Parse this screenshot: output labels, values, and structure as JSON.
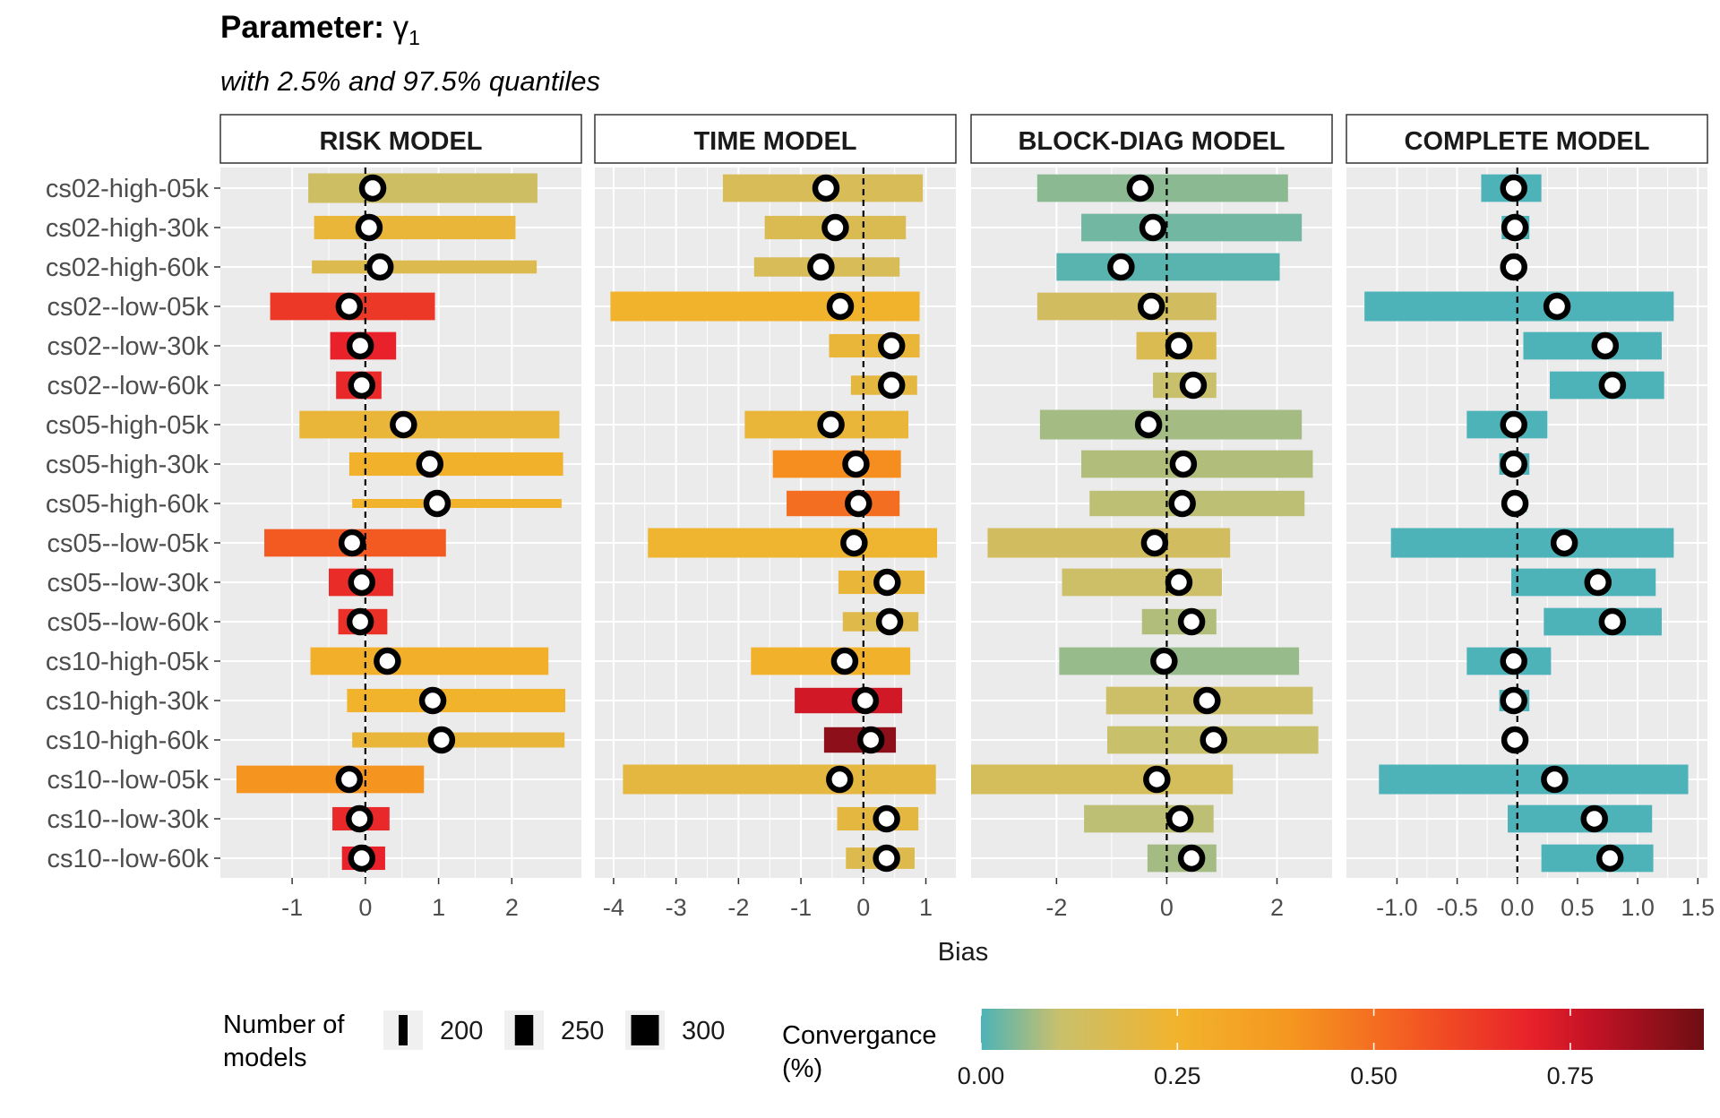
{
  "title_prefix": "Parameter: ",
  "title_symbol": "γ",
  "title_subscript": "1",
  "subtitle": "with 2.5% and 97.5% quantiles",
  "xlabel": "Bias",
  "legend": {
    "size_title_line1": "Number of",
    "size_title_line2": "models",
    "size_values": [
      200,
      250,
      300
    ],
    "size_labels": [
      "200",
      "250",
      "300"
    ],
    "color_title_line1": "Convergance",
    "color_title_line2": "(%)",
    "color_ticks": [
      0,
      0.25,
      0.5,
      0.75
    ],
    "color_tick_labels": [
      "0.00",
      "0.25",
      "0.50",
      "0.75"
    ],
    "color_range": [
      0,
      0.92
    ],
    "color_stops": [
      {
        "v": 0.0,
        "c": "#4db3b8"
      },
      {
        "v": 0.1,
        "c": "#c9c06c"
      },
      {
        "v": 0.25,
        "c": "#f2b32c"
      },
      {
        "v": 0.4,
        "c": "#f5951f"
      },
      {
        "v": 0.55,
        "c": "#f35a22"
      },
      {
        "v": 0.7,
        "c": "#e8212a"
      },
      {
        "v": 0.78,
        "c": "#c21225"
      },
      {
        "v": 0.92,
        "c": "#6e0e13"
      }
    ]
  },
  "chart_data": {
    "type": "interval-dot",
    "categories": [
      "cs02-high-05k",
      "cs02-high-30k",
      "cs02-high-60k",
      "cs02--low-05k",
      "cs02--low-30k",
      "cs02--low-60k",
      "cs05-high-05k",
      "cs05-high-30k",
      "cs05-high-60k",
      "cs05--low-05k",
      "cs05--low-30k",
      "cs05--low-60k",
      "cs10-high-05k",
      "cs10-high-30k",
      "cs10-high-60k",
      "cs10--low-05k",
      "cs10--low-30k",
      "cs10--low-60k"
    ],
    "panels": [
      {
        "name": "RISK MODEL",
        "xlim": [
          -1.98,
          2.95
        ],
        "xticks": [
          -1,
          0,
          1,
          2
        ],
        "xtick_labels": [
          "-1",
          "0",
          "1",
          "2"
        ],
        "lo": [
          -0.78,
          -0.7,
          -0.73,
          -1.3,
          -0.48,
          -0.4,
          -0.9,
          -0.22,
          -0.18,
          -1.38,
          -0.5,
          -0.37,
          -0.75,
          -0.25,
          -0.18,
          -1.76,
          -0.45,
          -0.32
        ],
        "hi": [
          2.35,
          2.05,
          2.34,
          0.95,
          0.42,
          0.22,
          2.65,
          2.7,
          2.68,
          1.1,
          0.38,
          0.3,
          2.5,
          2.73,
          2.72,
          0.8,
          0.33,
          0.27
        ],
        "mean": [
          0.1,
          0.05,
          0.2,
          -0.22,
          -0.07,
          -0.05,
          0.52,
          0.88,
          0.98,
          -0.18,
          -0.05,
          -0.07,
          0.3,
          0.92,
          1.04,
          -0.22,
          -0.08,
          -0.05
        ],
        "conv": [
          0.12,
          0.22,
          0.17,
          0.64,
          0.7,
          0.68,
          0.22,
          0.26,
          0.25,
          0.55,
          0.67,
          0.66,
          0.27,
          0.25,
          0.22,
          0.4,
          0.68,
          0.7
        ],
        "n": [
          300,
          270,
          220,
          290,
          290,
          290,
          290,
          270,
          200,
          290,
          290,
          280,
          290,
          270,
          230,
          290,
          270,
          270
        ]
      },
      {
        "name": "TIME MODEL",
        "xlim": [
          -4.3,
          1.48
        ],
        "xticks": [
          -4,
          -3,
          -2,
          -1,
          0,
          1
        ],
        "xtick_labels": [
          "-4",
          "-3",
          "-2",
          "-1",
          "0",
          "1"
        ],
        "lo": [
          -2.25,
          -1.58,
          -1.75,
          -4.05,
          -0.55,
          -0.2,
          -1.9,
          -1.45,
          -1.23,
          -3.45,
          -0.4,
          -0.33,
          -1.8,
          -1.1,
          -0.63,
          -3.85,
          -0.42,
          -0.28
        ],
        "hi": [
          0.95,
          0.68,
          0.58,
          0.9,
          0.9,
          0.86,
          0.72,
          0.6,
          0.58,
          1.18,
          0.98,
          0.88,
          0.75,
          0.62,
          0.52,
          1.16,
          0.88,
          0.82
        ],
        "mean": [
          -0.6,
          -0.45,
          -0.68,
          -0.37,
          0.45,
          0.45,
          -0.52,
          -0.12,
          -0.08,
          -0.15,
          0.38,
          0.42,
          -0.3,
          0.03,
          0.12,
          -0.38,
          0.37,
          0.37
        ],
        "conv": [
          0.15,
          0.16,
          0.15,
          0.25,
          0.22,
          0.2,
          0.22,
          0.42,
          0.5,
          0.24,
          0.22,
          0.18,
          0.26,
          0.75,
          0.87,
          0.2,
          0.2,
          0.17
        ],
        "n": [
          290,
          270,
          250,
          300,
          270,
          250,
          290,
          290,
          280,
          300,
          270,
          250,
          290,
          280,
          280,
          300,
          270,
          260
        ]
      },
      {
        "name": "BLOCK-DIAG MODEL",
        "xlim": [
          -3.55,
          3.0
        ],
        "xticks": [
          -2,
          0,
          2
        ],
        "xtick_labels": [
          "-2",
          "0",
          "2"
        ],
        "lo": [
          -2.35,
          -1.55,
          -2.0,
          -2.35,
          -0.55,
          -0.25,
          -2.3,
          -1.55,
          -1.4,
          -3.25,
          -1.9,
          -0.45,
          -1.95,
          -1.1,
          -1.08,
          -3.55,
          -1.5,
          -0.35
        ],
        "hi": [
          2.2,
          2.45,
          2.05,
          0.9,
          0.9,
          0.9,
          2.45,
          2.65,
          2.5,
          1.15,
          1.0,
          0.9,
          2.4,
          2.65,
          2.75,
          1.2,
          0.85,
          0.9
        ],
        "mean": [
          -0.48,
          -0.25,
          -0.83,
          -0.28,
          0.22,
          0.48,
          -0.33,
          0.3,
          0.28,
          -0.22,
          0.22,
          0.45,
          -0.05,
          0.73,
          0.85,
          -0.18,
          0.24,
          0.45
        ],
        "conv": [
          0.05,
          0.03,
          0.01,
          0.13,
          0.16,
          0.1,
          0.07,
          0.08,
          0.09,
          0.13,
          0.11,
          0.08,
          0.06,
          0.11,
          0.1,
          0.14,
          0.09,
          0.07
        ],
        "n": [
          290,
          290,
          290,
          290,
          290,
          280,
          300,
          290,
          280,
          300,
          290,
          280,
          290,
          290,
          290,
          300,
          290,
          290
        ]
      },
      {
        "name": "COMPLETE MODEL",
        "xlim": [
          -1.42,
          1.58
        ],
        "xticks": [
          -1.0,
          -0.5,
          0.0,
          0.5,
          1.0,
          1.5
        ],
        "xtick_labels": [
          "-1.0",
          "-0.5",
          "0.0",
          "0.5",
          "1.0",
          "1.5"
        ],
        "lo": [
          -0.3,
          -0.13,
          -0.1,
          -1.27,
          0.05,
          0.27,
          -0.42,
          -0.15,
          -0.1,
          -1.05,
          -0.05,
          0.22,
          -0.42,
          -0.15,
          -0.08,
          -1.15,
          -0.08,
          0.2
        ],
        "hi": [
          0.2,
          0.1,
          0.05,
          1.3,
          1.2,
          1.22,
          0.25,
          0.1,
          0.08,
          1.3,
          1.15,
          1.2,
          0.28,
          0.1,
          0.05,
          1.42,
          1.12,
          1.13
        ],
        "mean": [
          -0.03,
          -0.02,
          -0.03,
          0.33,
          0.73,
          0.79,
          -0.03,
          -0.03,
          -0.02,
          0.39,
          0.67,
          0.79,
          -0.03,
          -0.03,
          -0.02,
          0.31,
          0.64,
          0.77
        ],
        "conv": [
          0.0,
          0.0,
          0.0,
          0.0,
          0.0,
          0.0,
          0.0,
          0.0,
          0.0,
          0.0,
          0.0,
          0.0,
          0.0,
          0.0,
          0.0,
          0.0,
          0.0,
          0.0
        ],
        "n": [
          290,
          270,
          240,
          300,
          290,
          290,
          290,
          260,
          240,
          300,
          290,
          290,
          290,
          260,
          240,
          300,
          290,
          290
        ]
      }
    ]
  }
}
